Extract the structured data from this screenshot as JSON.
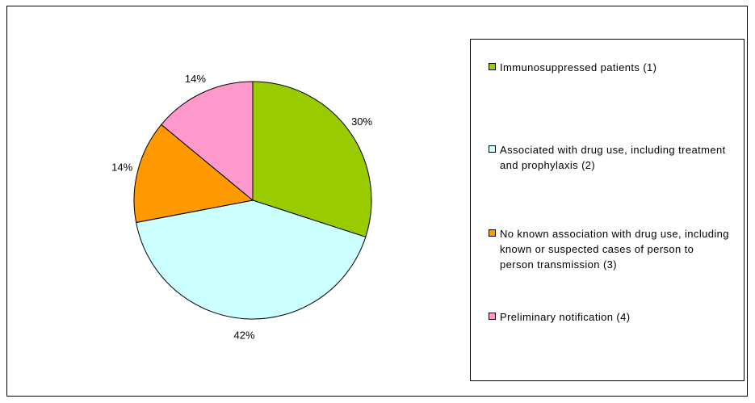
{
  "chart_data": {
    "type": "pie",
    "title": "",
    "start_angle_deg": 0,
    "direction": "clockwise",
    "legend_position": "right",
    "slices": [
      {
        "label": "Immunosuppressed patients (1)",
        "value": 30,
        "display": "30%",
        "color": "#99cc00"
      },
      {
        "label": "Associated with drug use, including treatment and prophylaxis (2)",
        "value": 42,
        "display": "42%",
        "color": "#ccffff"
      },
      {
        "label": "No known association with drug use, including known or suspected cases of person to person transmission (3)",
        "value": 14,
        "display": "14%",
        "color": "#ff9900"
      },
      {
        "label": "Preliminary notification (4)",
        "value": 14,
        "display": "14%",
        "color": "#ff99cc"
      }
    ]
  }
}
